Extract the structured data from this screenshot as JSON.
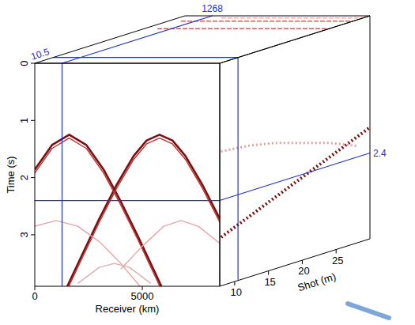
{
  "chart_data": {
    "type": "cube",
    "x_label": "Receiver (km)",
    "y_label": "Time (s)",
    "z_label": "Shot (m)",
    "xlim": [
      0,
      8600
    ],
    "xticks": [
      0,
      5000
    ],
    "ylim": [
      0,
      3.9
    ],
    "yticks": [
      0,
      1,
      2,
      3
    ],
    "zlim": [
      7.8,
      30
    ],
    "zticks": [
      10,
      15,
      20,
      25
    ],
    "crosshair": {
      "receiver": 1268,
      "shot": 10.5,
      "time": 2.4,
      "color": "#2233cc"
    },
    "front_events": [
      {
        "color": "#7a1010",
        "receiver": [
          0,
          800,
          1600,
          2400,
          3200,
          4000,
          4800,
          5600,
          6400
        ],
        "time": [
          1.86,
          1.43,
          1.25,
          1.43,
          1.86,
          2.42,
          3.03,
          3.67,
          4.32
        ]
      },
      {
        "color": "#7a1010",
        "receiver": [
          1200,
          1600,
          2200,
          3000,
          3800,
          4600,
          5200,
          5800,
          6400,
          7000,
          7800,
          8600
        ],
        "time": [
          4.16,
          3.83,
          3.35,
          2.72,
          2.13,
          1.62,
          1.35,
          1.25,
          1.35,
          1.62,
          2.13,
          2.72
        ]
      },
      {
        "color": "#c03030",
        "receiver": [
          0,
          800,
          1600,
          2400,
          3200,
          4000,
          4800,
          5600,
          6400
        ],
        "time": [
          1.92,
          1.49,
          1.31,
          1.49,
          1.92,
          2.48,
          3.09,
          3.73,
          4.38
        ]
      },
      {
        "color": "#c03030",
        "receiver": [
          1200,
          1600,
          2200,
          3000,
          3800,
          4600,
          5200,
          5800,
          6400,
          7000,
          7800,
          8600
        ],
        "time": [
          4.22,
          3.89,
          3.41,
          2.78,
          2.19,
          1.68,
          1.41,
          1.31,
          1.41,
          1.68,
          2.19,
          2.78
        ]
      },
      {
        "color": "#e9a3a3",
        "receiver": [
          0,
          1000,
          2000,
          3000,
          4000,
          5000
        ],
        "time": [
          2.85,
          2.75,
          2.85,
          3.12,
          3.5,
          3.95
        ]
      },
      {
        "color": "#e9a3a3",
        "receiver": [
          4000,
          5000,
          6000,
          6800,
          7600,
          8600
        ],
        "time": [
          3.6,
          3.2,
          2.85,
          2.75,
          2.85,
          3.15
        ]
      },
      {
        "color": "#d9b0b0",
        "receiver": [
          2000,
          3000,
          3700,
          4400,
          5400
        ],
        "time": [
          3.85,
          3.57,
          3.5,
          3.57,
          3.85
        ]
      }
    ],
    "side_events": [
      {
        "color": "#7a1010",
        "shot": [
          8,
          10,
          12,
          14,
          16,
          18,
          20,
          22,
          24,
          26,
          28,
          30
        ],
        "time": [
          3.05,
          2.95,
          2.85,
          2.75,
          2.65,
          2.55,
          2.45,
          2.35,
          2.25,
          2.15,
          2.05,
          1.95
        ]
      },
      {
        "color": "#e3a0a0",
        "shot": [
          8,
          12,
          16,
          20,
          24,
          28
        ],
        "time": [
          1.55,
          1.6,
          1.7,
          1.85,
          2.0,
          2.2
        ]
      }
    ],
    "top_events": [
      {
        "color": "#d06060",
        "receiver": [
          600,
          8600
        ],
        "shot": [
          24,
          24
        ]
      },
      {
        "color": "#d06060",
        "receiver": [
          600,
          8600
        ],
        "shot": [
          27.5,
          27.5
        ]
      },
      {
        "color": "#e8b0b0",
        "receiver": [
          2000,
          8600
        ],
        "shot": [
          29,
          29
        ]
      }
    ]
  }
}
